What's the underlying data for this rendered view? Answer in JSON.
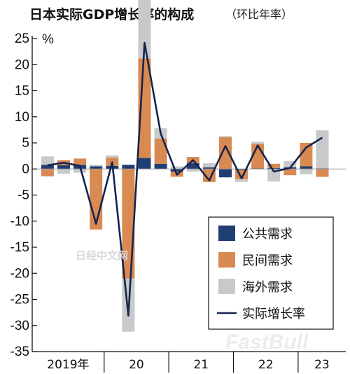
{
  "colors": {
    "public": "#1f3f73",
    "private": "#d98a52",
    "external": "#c8c9ca",
    "line": "#16244f",
    "axis": "#111111",
    "grid": "#9a9a9a"
  },
  "chart_data": {
    "type": "bar",
    "title": "日本实际GDP增长率的构成",
    "subtitle": "（环比年率）",
    "ylabel": "%",
    "ylim": [
      -35,
      25
    ],
    "yticks": [
      25,
      20,
      15,
      10,
      5,
      0,
      -5,
      -10,
      -15,
      -20,
      -25,
      -30,
      -35
    ],
    "x_groups": [
      "2019年",
      "20",
      "21",
      "22",
      "23"
    ],
    "quarters_per_group": [
      4,
      4,
      4,
      4,
      2
    ],
    "categories": [
      "2019Q1",
      "2019Q2",
      "2019Q3",
      "2019Q4",
      "2020Q1",
      "2020Q2",
      "2020Q3",
      "2020Q4",
      "2021Q1",
      "2021Q2",
      "2021Q3",
      "2021Q4",
      "2022Q1",
      "2022Q2",
      "2022Q3",
      "2022Q4",
      "2023Q1",
      "2023Q2"
    ],
    "legend_position": "bottom-right",
    "grid": "horizontal at 0 only",
    "series": [
      {
        "name": "公共需求",
        "values": [
          0.8,
          0.7,
          0.8,
          0.5,
          0.6,
          0.8,
          2.1,
          1.0,
          -0.5,
          1.1,
          0.3,
          -1.6,
          -0.2,
          0.1,
          0.2,
          0.3,
          0.5,
          0.1
        ]
      },
      {
        "name": "民间需求",
        "values": [
          -1.4,
          1.0,
          1.2,
          -11.6,
          1.6,
          -21.0,
          19.1,
          4.8,
          -1.0,
          1.2,
          -2.5,
          6.1,
          -1.8,
          4.7,
          0.8,
          -1.2,
          4.5,
          -1.5
        ]
      },
      {
        "name": "海外需求",
        "values": [
          1.6,
          -0.9,
          -0.7,
          0.3,
          0.4,
          -10.2,
          12.3,
          2.0,
          0.5,
          -0.5,
          0.8,
          0.2,
          -0.5,
          0.4,
          -2.4,
          1.2,
          -1.0,
          7.3
        ]
      },
      {
        "name": "实际增长率",
        "type": "line",
        "values": [
          0.7,
          1.2,
          0.6,
          -10.5,
          1.3,
          -28.1,
          24.2,
          6.8,
          -1.1,
          1.7,
          -2.2,
          4.4,
          -1.8,
          4.5,
          -0.5,
          0.2,
          4.1,
          6.0
        ]
      }
    ]
  },
  "watermarks": {
    "cn": "日经中文网",
    "en": "FastBull"
  }
}
